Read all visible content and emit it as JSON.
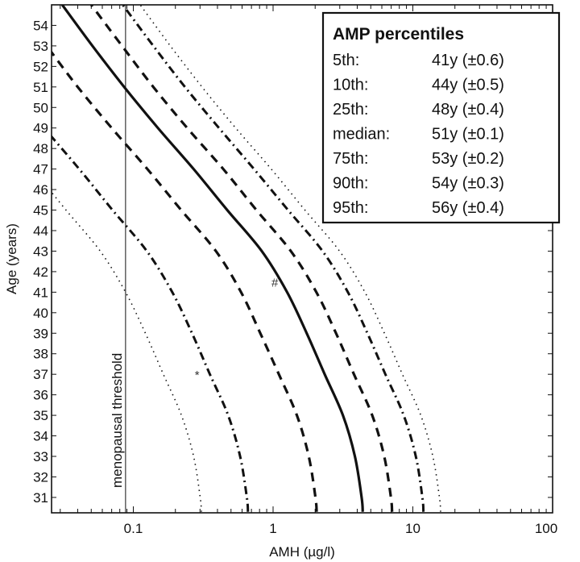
{
  "chart_data": {
    "type": "line",
    "title": "",
    "xlabel": "AMH (µg/l)",
    "ylabel": "Age (years)",
    "xscale": "log",
    "xlim": [
      0.026,
      100
    ],
    "ylim": [
      30.25,
      55.0
    ],
    "grid": false,
    "x_ticks": [
      0.1,
      1,
      10,
      100
    ],
    "x_tick_labels": [
      "0.1",
      "1",
      "10",
      "100"
    ],
    "y_ticks": [
      31,
      32,
      33,
      34,
      35,
      36,
      37,
      38,
      39,
      40,
      41,
      42,
      43,
      44,
      45,
      46,
      47,
      48,
      49,
      50,
      51,
      52,
      53,
      54
    ],
    "ages": [
      30.3,
      31,
      33,
      35,
      37,
      39,
      41,
      43,
      45,
      47,
      49,
      51,
      53,
      55
    ],
    "series": [
      {
        "name": "5th",
        "style": "dotted",
        "amh": [
          0.307,
          0.301,
          0.27,
          0.221,
          0.164,
          0.122,
          0.088,
          0.058,
          0.033,
          0.019,
          0.0105,
          0.006,
          0.0036,
          0.0022
        ]
      },
      {
        "name": "10th",
        "style": "dashdot",
        "amh": [
          0.661,
          0.649,
          0.581,
          0.477,
          0.353,
          0.263,
          0.19,
          0.125,
          0.071,
          0.041,
          0.023,
          0.013,
          0.0077,
          0.0047
        ]
      },
      {
        "name": "25th",
        "style": "dashed",
        "amh": [
          2.05,
          2.01,
          1.8,
          1.48,
          1.1,
          0.81,
          0.59,
          0.39,
          0.22,
          0.126,
          0.07,
          0.04,
          0.024,
          0.0145
        ]
      },
      {
        "name": "median",
        "style": "solid",
        "amh": [
          4.38,
          4.3,
          3.85,
          3.16,
          2.34,
          1.74,
          1.26,
          0.83,
          0.47,
          0.27,
          0.15,
          0.086,
          0.051,
          0.031
        ]
      },
      {
        "name": "75th",
        "style": "dashed",
        "amh": [
          7.1,
          6.97,
          6.24,
          5.12,
          3.79,
          2.82,
          2.04,
          1.34,
          0.76,
          0.44,
          0.243,
          0.139,
          0.083,
          0.05
        ]
      },
      {
        "name": "90th",
        "style": "dashdot",
        "amh": [
          11.9,
          11.7,
          10.5,
          8.6,
          6.36,
          4.73,
          3.43,
          2.26,
          1.28,
          0.73,
          0.41,
          0.234,
          0.139,
          0.084
        ]
      },
      {
        "name": "95th",
        "style": "dotted",
        "amh": [
          15.8,
          15.5,
          13.9,
          11.4,
          8.42,
          6.26,
          4.54,
          2.99,
          1.69,
          0.97,
          0.54,
          0.31,
          0.184,
          0.112
        ]
      }
    ],
    "threshold": {
      "label": "menopausal threshold",
      "amh": 0.088
    },
    "annotations": [
      {
        "text": "#",
        "amh": 1.03,
        "age": 41.5
      },
      {
        "text": "*",
        "amh": 0.286,
        "age": 37.0
      }
    ],
    "legend": {
      "placement": "top-right",
      "title": "AMP percentiles",
      "rows": [
        {
          "label": "5th:",
          "value": "41y (±0.6)"
        },
        {
          "label": "10th:",
          "value": "44y (±0.5)"
        },
        {
          "label": "25th:",
          "value": "48y (±0.4)"
        },
        {
          "label": "median:",
          "value": "51y (±0.1)"
        },
        {
          "label": "75th:",
          "value": "53y (±0.2)"
        },
        {
          "label": "90th:",
          "value": "54y (±0.3)"
        },
        {
          "label": "95th:",
          "value": "56y (±0.4)"
        }
      ]
    }
  }
}
